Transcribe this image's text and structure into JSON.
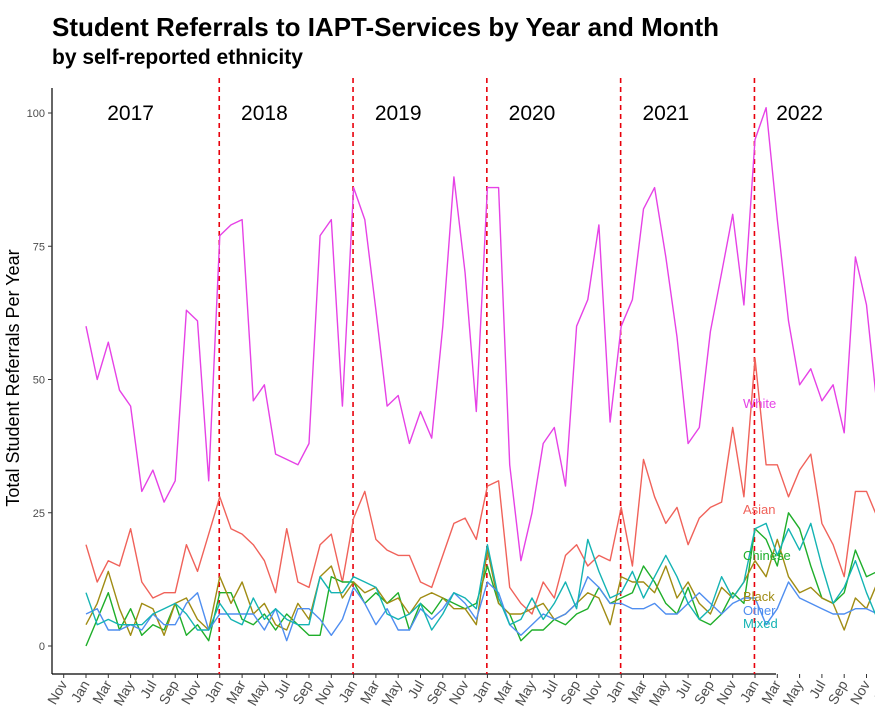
{
  "chart_data": {
    "type": "line",
    "title": "Student Referrals to IAPT-Services by Year and Month",
    "subtitle": "by self-reported ethnicity",
    "xlabel": "",
    "ylabel": "Total Student Referrals Per Year",
    "ylim": [
      0,
      105
    ],
    "yticks": [
      0,
      25,
      50,
      75,
      100
    ],
    "xtick_labels": [
      "Nov",
      "Jan",
      "Mar",
      "May",
      "Jul",
      "Sep",
      "Nov",
      "Jan",
      "Mar",
      "May",
      "Jul",
      "Sep",
      "Nov",
      "Jan",
      "Mar",
      "May",
      "Jul",
      "Sep",
      "Nov",
      "Jan",
      "Mar",
      "May",
      "Jul",
      "Sep",
      "Nov",
      "Jan",
      "Mar",
      "May",
      "Jul",
      "Sep",
      "Nov",
      "Jan",
      "Mar",
      "May",
      "Jul",
      "Sep",
      "Nov",
      "Jan",
      "Mar"
    ],
    "xtick_start_index": -2,
    "year_labels": [
      "2017",
      "2018",
      "2019",
      "2020",
      "2021",
      "2022"
    ],
    "year_boundaries_index": [
      12,
      24,
      36,
      48,
      60
    ],
    "grid": false,
    "legend": "direct labels at line ends (right)",
    "series": [
      {
        "name": "White",
        "color": "#e642e6",
        "values": [
          60,
          50,
          57,
          48,
          45,
          29,
          33,
          27,
          31,
          63,
          61,
          31,
          77,
          79,
          80,
          46,
          49,
          36,
          35,
          34,
          38,
          77,
          80,
          45,
          86,
          80,
          63,
          45,
          47,
          38,
          44,
          39,
          60,
          88,
          70,
          44,
          86,
          86,
          34,
          16,
          25,
          38,
          41,
          30,
          60,
          65,
          79,
          42,
          60,
          65,
          82,
          86,
          73,
          58,
          38,
          41,
          59,
          70,
          81,
          64,
          95,
          101,
          80,
          61,
          49,
          52,
          46,
          49,
          40,
          73,
          64,
          44
        ]
      },
      {
        "name": "Asian",
        "color": "#f0625a",
        "values": [
          19,
          12,
          16,
          15,
          22,
          12,
          9,
          10,
          10,
          19,
          14,
          21,
          28,
          22,
          21,
          19,
          16,
          10,
          22,
          12,
          11,
          19,
          21,
          12,
          24,
          29,
          20,
          18,
          17,
          17,
          12,
          11,
          17,
          23,
          24,
          20,
          30,
          31,
          11,
          8,
          6,
          12,
          9,
          17,
          19,
          15,
          17,
          16,
          26,
          15,
          35,
          28,
          23,
          26,
          19,
          24,
          26,
          27,
          41,
          28,
          54,
          34,
          34,
          28,
          33,
          36,
          23,
          19,
          13,
          29,
          29,
          24
        ]
      },
      {
        "name": "Chinese",
        "color": "#1fae2a",
        "values": [
          0,
          5,
          10,
          3,
          7,
          2,
          4,
          3,
          8,
          2,
          4,
          1,
          10,
          10,
          5,
          4,
          6,
          3,
          6,
          4,
          2,
          2,
          13,
          12,
          12,
          8,
          10,
          8,
          10,
          3,
          8,
          6,
          9,
          8,
          7,
          8,
          15,
          8,
          6,
          1,
          3,
          3,
          5,
          4,
          6,
          7,
          11,
          8,
          9,
          10,
          15,
          12,
          8,
          6,
          11,
          5,
          4,
          6,
          10,
          8,
          22,
          20,
          15,
          25,
          22,
          15,
          9,
          8,
          10,
          18,
          13,
          14
        ]
      },
      {
        "name": "Black",
        "color": "#a08c14",
        "values": [
          4,
          8,
          14,
          7,
          2,
          8,
          7,
          2,
          8,
          9,
          5,
          3,
          13,
          8,
          12,
          6,
          8,
          4,
          3,
          8,
          5,
          13,
          15,
          9,
          12,
          10,
          11,
          8,
          9,
          6,
          9,
          10,
          9,
          7,
          7,
          4,
          18,
          8,
          6,
          6,
          7,
          8,
          5,
          6,
          8,
          10,
          9,
          4,
          13,
          12,
          12,
          10,
          15,
          9,
          12,
          8,
          6,
          11,
          9,
          12,
          16,
          13,
          20,
          13,
          10,
          11,
          9,
          8,
          3,
          9,
          7,
          12
        ]
      },
      {
        "name": "Other",
        "color": "#4f8ef0",
        "values": [
          6,
          7,
          3,
          3,
          4,
          3,
          6,
          4,
          4,
          8,
          10,
          3,
          6,
          6,
          6,
          6,
          3,
          7,
          1,
          7,
          7,
          5,
          2,
          5,
          11,
          8,
          4,
          7,
          3,
          3,
          7,
          5,
          7,
          10,
          8,
          5,
          12,
          10,
          4,
          2,
          4,
          6,
          5,
          6,
          8,
          13,
          11,
          8,
          8,
          7,
          7,
          8,
          6,
          6,
          8,
          10,
          8,
          6,
          8,
          9,
          9,
          4,
          7,
          12,
          9,
          8,
          7,
          6,
          6,
          7,
          7,
          6
        ]
      },
      {
        "name": "Mixed",
        "color": "#14b3b3",
        "values": [
          10,
          4,
          5,
          4,
          4,
          4,
          6,
          7,
          8,
          6,
          3,
          3,
          8,
          5,
          4,
          9,
          5,
          7,
          5,
          4,
          4,
          13,
          10,
          10,
          13,
          12,
          11,
          6,
          5,
          6,
          8,
          3,
          6,
          10,
          9,
          7,
          19,
          9,
          4,
          5,
          9,
          5,
          8,
          12,
          7,
          20,
          14,
          9,
          10,
          14,
          9,
          13,
          17,
          13,
          8,
          5,
          7,
          13,
          9,
          12,
          22,
          23,
          17,
          22,
          18,
          23,
          15,
          8,
          11,
          16,
          10,
          5
        ]
      }
    ]
  }
}
